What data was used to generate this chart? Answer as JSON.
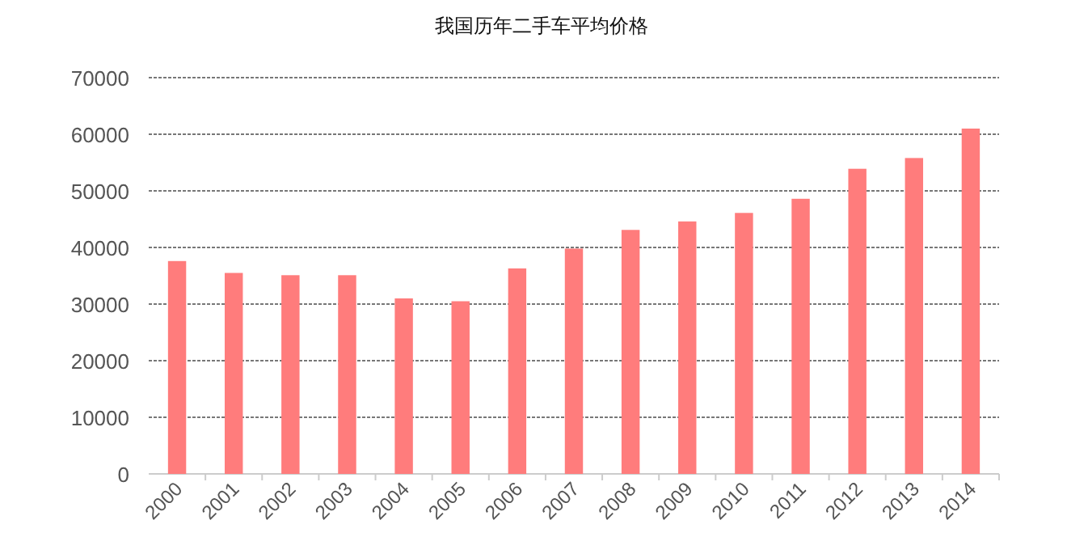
{
  "chart_data": {
    "type": "bar",
    "title": "我国历年二手车平均价格",
    "categories": [
      "2000",
      "2001",
      "2002",
      "2003",
      "2004",
      "2005",
      "2006",
      "2007",
      "2008",
      "2009",
      "2010",
      "2011",
      "2012",
      "2013",
      "2014"
    ],
    "values": [
      37600,
      35500,
      35100,
      35100,
      31000,
      30500,
      36300,
      39800,
      43100,
      44600,
      46100,
      48600,
      53900,
      55800,
      61000
    ],
    "color": "#ff7c7c",
    "ylim": [
      0,
      70000
    ],
    "yticks": [
      0,
      10000,
      20000,
      30000,
      40000,
      50000,
      60000,
      70000
    ],
    "grid": "y"
  }
}
